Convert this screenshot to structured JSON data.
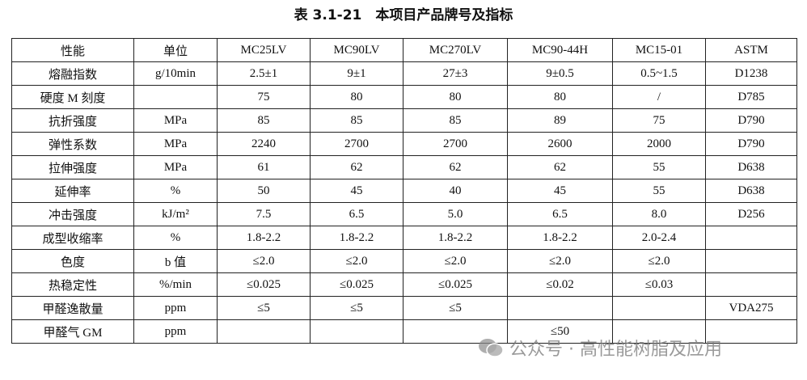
{
  "header": {
    "title": "表 3.1-21　本项目产品牌号及指标"
  },
  "table": {
    "columns": [
      "性能",
      "单位",
      "MC25LV",
      "MC90LV",
      "MC270LV",
      "MC90-44H",
      "MC15-01",
      "ASTM"
    ],
    "rows": [
      [
        "熔融指数",
        "g/10min",
        "2.5±1",
        "9±1",
        "27±3",
        "9±0.5",
        "0.5~1.5",
        "D1238"
      ],
      [
        "硬度 M 刻度",
        null,
        "75",
        "80",
        "80",
        "80",
        "/",
        "D785"
      ],
      [
        "抗折强度",
        "MPa",
        "85",
        "85",
        "85",
        "89",
        "75",
        "D790"
      ],
      [
        "弹性系数",
        "MPa",
        "2240",
        "2700",
        "2700",
        "2600",
        "2000",
        "D790"
      ],
      [
        "拉伸强度",
        "MPa",
        "61",
        "62",
        "62",
        "62",
        "55",
        "D638"
      ],
      [
        "延伸率",
        "%",
        "50",
        "45",
        "40",
        "45",
        "55",
        "D638"
      ],
      [
        "冲击强度",
        "kJ/m²",
        "7.5",
        "6.5",
        "5.0",
        "6.5",
        "8.0",
        "D256"
      ],
      [
        "成型收缩率",
        "%",
        "1.8-2.2",
        "1.8-2.2",
        "1.8-2.2",
        "1.8-2.2",
        "2.0-2.4",
        null
      ],
      [
        "色度",
        "b 值",
        "≤2.0",
        "≤2.0",
        "≤2.0",
        "≤2.0",
        "≤2.0",
        null
      ],
      [
        "热稳定性",
        "%/min",
        "≤0.025",
        "≤0.025",
        "≤0.025",
        "≤0.02",
        "≤0.03",
        null
      ],
      [
        "甲醛逸散量",
        "ppm",
        "≤5",
        "≤5",
        "≤5",
        null,
        null,
        "VDA275"
      ],
      [
        "甲醛气 GM",
        "ppm",
        null,
        null,
        null,
        "≤50",
        null,
        null
      ]
    ]
  },
  "watermark": "公众号 · 高性能树脂及应用"
}
